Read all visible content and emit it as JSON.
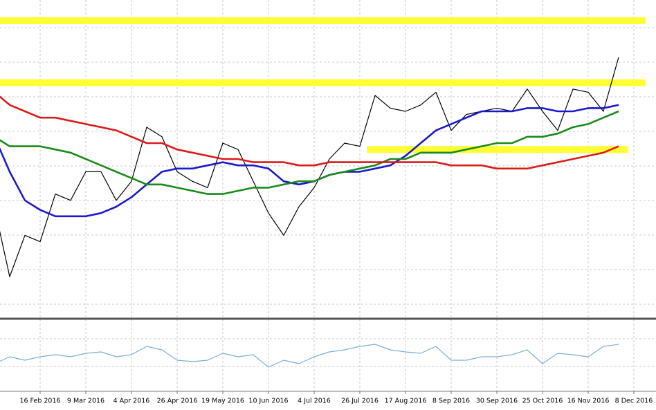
{
  "chart_data": {
    "type": "line",
    "categories": [
      null,
      null,
      null,
      "16 Feb 2016",
      null,
      null,
      "9 Mar 2016",
      null,
      null,
      "4 Apr 2016",
      null,
      null,
      "26 Apr 2016",
      null,
      null,
      "19 May 2016",
      null,
      null,
      "10 Jun 2016",
      null,
      null,
      "4 Jul 2016",
      null,
      null,
      "26 Jul 2016",
      null,
      null,
      "17 Aug 2016",
      null,
      null,
      "8 Sep 2016",
      null,
      null,
      "30 Sep 2016",
      null,
      null,
      "25 Oct 2016",
      null,
      null,
      "16 Nov 2016",
      null,
      null,
      "8 Dec 2016"
    ],
    "ylim": [
      0,
      100
    ],
    "indicator_ylim": [
      0,
      100
    ],
    "grid": true,
    "levels": [
      {
        "value": 93.5,
        "color": "#ffff33"
      },
      {
        "value": 74,
        "color": "#ffff33"
      },
      {
        "value": 53,
        "color": "#ffff33"
      }
    ],
    "series": [
      {
        "name": "price",
        "color": "#000000",
        "values": [
          34.8,
          13,
          26,
          24,
          39,
          37,
          46,
          46,
          37,
          43,
          60,
          57,
          46,
          43,
          41,
          55,
          53,
          43,
          33,
          26,
          35,
          41,
          50,
          55,
          54,
          70,
          66,
          65,
          67,
          71,
          59,
          64,
          65,
          66,
          65,
          72,
          65,
          59,
          72,
          71,
          65,
          82,
          null
        ]
      },
      {
        "name": "ma-fast",
        "color": "#1a1acc",
        "values": [
          57,
          46,
          37,
          34,
          32,
          32,
          32,
          33,
          35,
          38,
          42,
          46,
          47,
          47,
          48,
          49,
          48,
          48,
          47,
          43,
          42,
          43,
          45,
          46,
          46,
          47,
          48,
          51,
          55,
          59,
          61,
          63,
          65,
          65,
          65,
          66,
          66,
          65,
          65,
          66,
          66,
          67,
          null
        ]
      },
      {
        "name": "ma-mid",
        "color": "#1a8a1a",
        "values": [
          57,
          54,
          54,
          54,
          53,
          52,
          50,
          48,
          46,
          44,
          42,
          42,
          41,
          40,
          39,
          39,
          40,
          41,
          41,
          42,
          43,
          43,
          45,
          46,
          47,
          48,
          50,
          50,
          52,
          52,
          52,
          53,
          54,
          55,
          55,
          57,
          57,
          58,
          60,
          61,
          63,
          65,
          null
        ]
      },
      {
        "name": "ma-slow",
        "color": "#dd1a1a",
        "values": [
          71,
          67,
          65,
          63,
          63,
          62,
          61,
          60,
          59,
          57,
          55,
          55,
          53,
          52,
          51,
          50,
          50,
          49,
          49,
          49,
          48,
          48,
          49,
          49,
          49,
          49,
          49,
          49,
          49,
          49,
          48,
          48,
          48,
          47,
          47,
          47,
          48,
          49,
          50,
          51,
          52,
          54,
          null
        ]
      },
      {
        "name": "indicator",
        "color": "#7aaedc",
        "panel": "indicator",
        "values": [
          40,
          50,
          45,
          50,
          53,
          50,
          55,
          57,
          50,
          53,
          65,
          60,
          45,
          43,
          45,
          55,
          50,
          53,
          35,
          45,
          40,
          50,
          57,
          60,
          65,
          68,
          60,
          57,
          55,
          65,
          45,
          45,
          50,
          50,
          53,
          60,
          40,
          55,
          53,
          50,
          65,
          68,
          null
        ]
      }
    ]
  }
}
